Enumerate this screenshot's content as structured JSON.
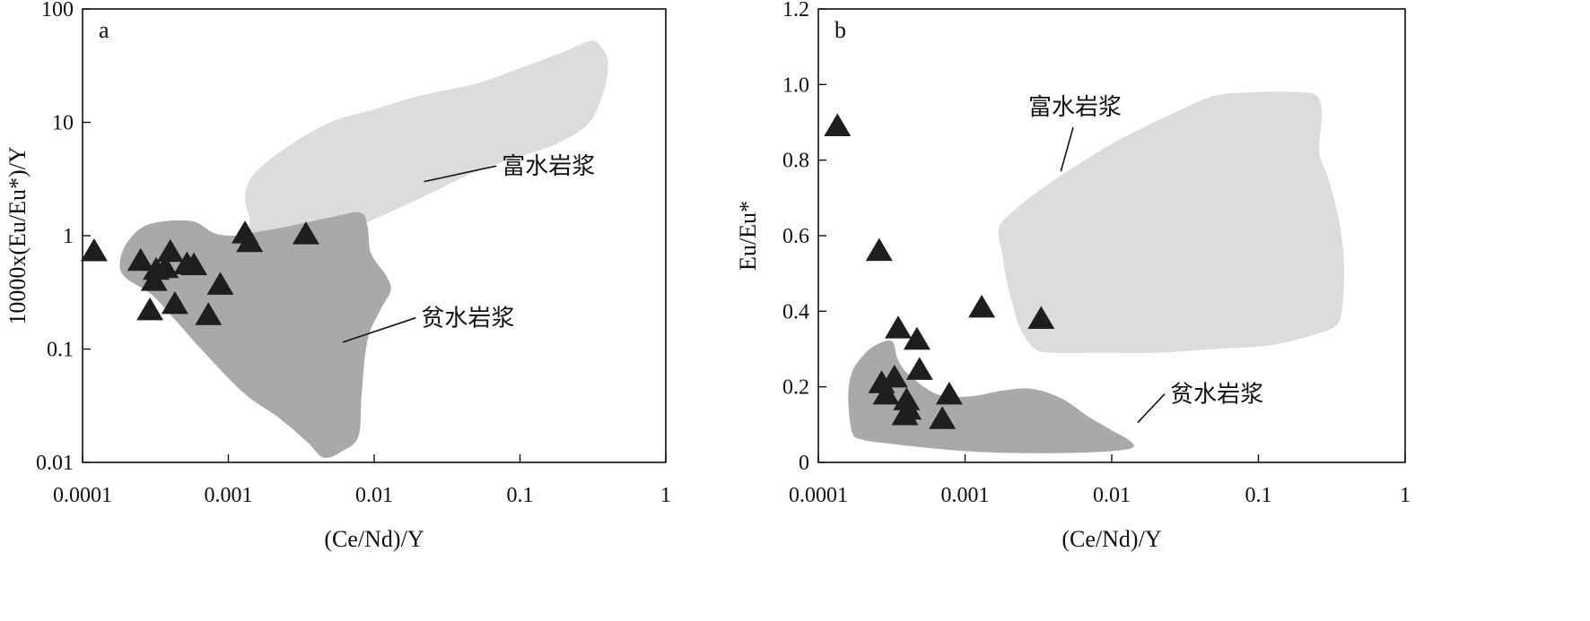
{
  "chart_data": [
    {
      "type": "scatter",
      "panel": "a",
      "xlabel": "(Ce/Nd)/Y",
      "ylabel": "10000x(Eu/Eu*)/Y",
      "x_scale": "log",
      "y_scale": "log",
      "xlim": [
        0.0001,
        1
      ],
      "ylim": [
        0.01,
        100
      ],
      "x_ticks": [
        "0.0001",
        "0.001",
        "0.01",
        "0.1",
        "1"
      ],
      "y_ticks": [
        "0.01",
        "0.1",
        "1",
        "10",
        "100"
      ],
      "grid": false,
      "fields": [
        {
          "label": "富水岩浆",
          "color": "#dcdcdc",
          "polygon": [
            [
              0.0014,
              1.4
            ],
            [
              0.0013,
              2.2
            ],
            [
              0.0015,
              3.5
            ],
            [
              0.0025,
              6
            ],
            [
              0.005,
              10
            ],
            [
              0.01,
              13
            ],
            [
              0.02,
              17
            ],
            [
              0.05,
              22
            ],
            [
              0.1,
              30
            ],
            [
              0.2,
              42
            ],
            [
              0.3,
              52
            ],
            [
              0.35,
              48
            ],
            [
              0.4,
              35
            ],
            [
              0.38,
              20
            ],
            [
              0.3,
              10
            ],
            [
              0.18,
              6.5
            ],
            [
              0.1,
              5
            ],
            [
              0.05,
              3.7
            ],
            [
              0.025,
              2.4
            ],
            [
              0.012,
              1.55
            ],
            [
              0.007,
              1.15
            ],
            [
              0.004,
              0.92
            ],
            [
              0.0025,
              0.8
            ],
            [
              0.0017,
              0.82
            ],
            [
              0.0014,
              1.0
            ]
          ]
        },
        {
          "label": "贫水岩浆",
          "color": "#a9a9a9",
          "polygon": [
            [
              0.00018,
              0.55
            ],
            [
              0.0002,
              0.85
            ],
            [
              0.00028,
              1.25
            ],
            [
              0.00055,
              1.35
            ],
            [
              0.0008,
              1.05
            ],
            [
              0.0011,
              1.0
            ],
            [
              0.0014,
              1.05
            ],
            [
              0.0025,
              1.2
            ],
            [
              0.005,
              1.45
            ],
            [
              0.008,
              1.6
            ],
            [
              0.009,
              1.2
            ],
            [
              0.0095,
              0.7
            ],
            [
              0.012,
              0.45
            ],
            [
              0.013,
              0.33
            ],
            [
              0.011,
              0.22
            ],
            [
              0.009,
              0.12
            ],
            [
              0.0082,
              0.04
            ],
            [
              0.0078,
              0.017
            ],
            [
              0.006,
              0.0125
            ],
            [
              0.0045,
              0.011
            ],
            [
              0.0035,
              0.015
            ],
            [
              0.0022,
              0.025
            ],
            [
              0.0013,
              0.04
            ],
            [
              0.0007,
              0.09
            ],
            [
              0.00045,
              0.17
            ],
            [
              0.0003,
              0.3
            ],
            [
              0.0002,
              0.42
            ]
          ]
        }
      ],
      "points": {
        "x": [
          0.00012,
          0.00025,
          0.00031,
          0.00029,
          0.0004,
          0.00037,
          0.00052,
          0.00058,
          0.00043,
          0.00032,
          0.00088,
          0.00073,
          0.0013,
          0.0014,
          0.0034
        ],
        "y": [
          0.73,
          0.6,
          0.4,
          0.22,
          0.72,
          0.52,
          0.56,
          0.55,
          0.25,
          0.5,
          0.37,
          0.2,
          1.05,
          0.88,
          1.03
        ]
      },
      "annotations": [
        {
          "text": "富水岩浆",
          "x": 0.075,
          "y": 3.5,
          "target": [
            0.022,
            3.0
          ]
        },
        {
          "text": "贫水岩浆",
          "x": 0.021,
          "y": 0.16,
          "target": [
            0.0061,
            0.115
          ]
        }
      ]
    },
    {
      "type": "scatter",
      "panel": "b",
      "xlabel": "(Ce/Nd)/Y",
      "ylabel": "Eu/Eu*",
      "x_scale": "log",
      "y_scale": "linear",
      "xlim": [
        0.0001,
        1
      ],
      "ylim": [
        0,
        1.2
      ],
      "x_ticks": [
        "0.0001",
        "0.001",
        "0.01",
        "0.1",
        "1"
      ],
      "y_ticks": [
        "0",
        "0.2",
        "0.4",
        "0.6",
        "0.8",
        "1.0",
        "1.2"
      ],
      "grid": false,
      "fields": [
        {
          "label": "富水岩浆",
          "color": "#dcdcdc",
          "polygon": [
            [
              0.0018,
              0.55
            ],
            [
              0.0017,
              0.62
            ],
            [
              0.0022,
              0.67
            ],
            [
              0.0035,
              0.73
            ],
            [
              0.006,
              0.79
            ],
            [
              0.012,
              0.86
            ],
            [
              0.025,
              0.92
            ],
            [
              0.05,
              0.97
            ],
            [
              0.1,
              0.98
            ],
            [
              0.18,
              0.98
            ],
            [
              0.25,
              0.97
            ],
            [
              0.27,
              0.92
            ],
            [
              0.26,
              0.82
            ],
            [
              0.3,
              0.75
            ],
            [
              0.35,
              0.65
            ],
            [
              0.38,
              0.55
            ],
            [
              0.38,
              0.45
            ],
            [
              0.35,
              0.37
            ],
            [
              0.25,
              0.34
            ],
            [
              0.12,
              0.31
            ],
            [
              0.05,
              0.3
            ],
            [
              0.02,
              0.29
            ],
            [
              0.008,
              0.29
            ],
            [
              0.004,
              0.29
            ],
            [
              0.003,
              0.3
            ],
            [
              0.0024,
              0.35
            ],
            [
              0.0021,
              0.42
            ],
            [
              0.0019,
              0.49
            ]
          ]
        },
        {
          "label": "贫水岩浆",
          "color": "#a9a9a9",
          "polygon": [
            [
              0.00017,
              0.08
            ],
            [
              0.00016,
              0.17
            ],
            [
              0.00017,
              0.24
            ],
            [
              0.00021,
              0.29
            ],
            [
              0.00026,
              0.315
            ],
            [
              0.00032,
              0.32
            ],
            [
              0.00035,
              0.27
            ],
            [
              0.00042,
              0.23
            ],
            [
              0.00065,
              0.18
            ],
            [
              0.0011,
              0.175
            ],
            [
              0.0018,
              0.19
            ],
            [
              0.0028,
              0.195
            ],
            [
              0.0045,
              0.17
            ],
            [
              0.007,
              0.12
            ],
            [
              0.01,
              0.085
            ],
            [
              0.013,
              0.06
            ],
            [
              0.014,
              0.04
            ],
            [
              0.01,
              0.03
            ],
            [
              0.005,
              0.025
            ],
            [
              0.002,
              0.025
            ],
            [
              0.001,
              0.03
            ],
            [
              0.0005,
              0.04
            ],
            [
              0.0003,
              0.05
            ],
            [
              0.0002,
              0.06
            ]
          ]
        }
      ],
      "points": {
        "x": [
          0.000135,
          0.00026,
          0.00035,
          0.00047,
          0.00049,
          0.00027,
          0.00033,
          0.00029,
          0.0004,
          0.00041,
          0.00039,
          0.00078,
          0.0007,
          0.0013,
          0.0033
        ],
        "y": [
          0.89,
          0.56,
          0.355,
          0.325,
          0.245,
          0.21,
          0.225,
          0.18,
          0.165,
          0.14,
          0.125,
          0.18,
          0.115,
          0.41,
          0.38
        ]
      },
      "annotations": [
        {
          "text": "富水岩浆",
          "x": 0.0027,
          "y": 0.92,
          "target": [
            0.0045,
            0.77
          ]
        },
        {
          "text": "贫水岩浆",
          "x": 0.025,
          "y": 0.16,
          "target": [
            0.015,
            0.105
          ]
        }
      ]
    }
  ],
  "panels": {
    "a": {
      "letter": "a"
    },
    "b": {
      "letter": "b"
    }
  }
}
